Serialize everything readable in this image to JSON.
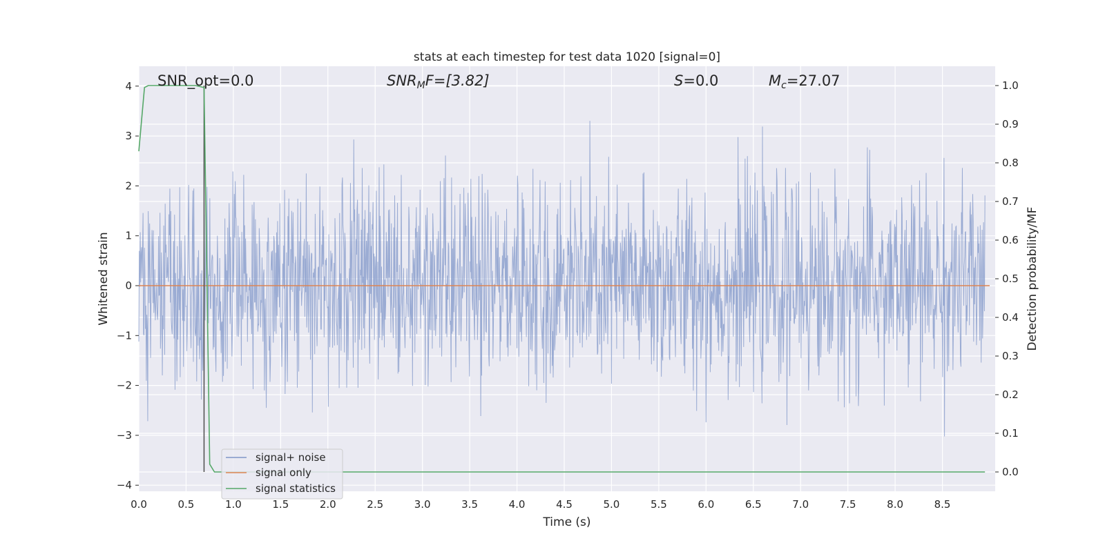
{
  "chart_data": {
    "type": "line",
    "title": "stats at each timestep for test data 1020 [signal=0]",
    "xlabel": "Time (s)",
    "ylabel": "Whitened strain",
    "y2label": "Detection probability/MF",
    "xlim": [
      0.0,
      9.0
    ],
    "ylim": [
      -4.2,
      4.4
    ],
    "y2lim": [
      -0.045,
      1.045
    ],
    "xticks": [
      "0.0",
      "0.5",
      "1.0",
      "1.5",
      "2.0",
      "2.5",
      "3.0",
      "3.5",
      "4.0",
      "4.5",
      "5.0",
      "5.5",
      "6.0",
      "6.5",
      "7.0",
      "7.5",
      "8.0",
      "8.5"
    ],
    "yticks": [
      "4",
      "3",
      "2",
      "1",
      "0",
      "−1",
      "−2",
      "−3",
      "−4"
    ],
    "y2ticks": [
      "1.0",
      "0.9",
      "0.8",
      "0.7",
      "0.6",
      "0.5",
      "0.4",
      "0.3",
      "0.2",
      "0.1",
      "0.0"
    ],
    "grid": true,
    "legend_placement": "lower-left",
    "annotations": {
      "snr_opt": "SNR_opt=0.0",
      "snr_mf_base": "SNR",
      "snr_mf_sub": "M",
      "snr_mf_rest": "F=[3.82]",
      "s_var": "S",
      "s_rest": "=0.0",
      "mc_var": "M",
      "mc_sub": "c",
      "mc_rest": "=27.07"
    },
    "series": [
      {
        "name": "signal+ noise",
        "color": "#7f96c8",
        "axis": "left",
        "description_values": {
          "n_samples": 1800,
          "approx_std": 1.0,
          "max": 4.0,
          "min": -3.8
        }
      },
      {
        "name": "signal only",
        "color": "#dd8452",
        "axis": "left",
        "x": [
          0.0,
          9.0
        ],
        "y": [
          0.0,
          0.0
        ]
      },
      {
        "name": "signal statistics",
        "color": "#55a868",
        "axis": "right",
        "x": [
          0.0,
          0.06,
          0.1,
          0.2,
          0.3,
          0.4,
          0.5,
          0.6,
          0.69,
          0.75,
          0.8,
          0.9,
          1.0,
          2.0,
          3.0,
          4.0,
          5.0,
          6.0,
          7.0,
          8.0,
          8.95
        ],
        "y": [
          0.83,
          0.995,
          1.0,
          1.0,
          1.0,
          1.0,
          1.0,
          1.0,
          0.995,
          0.02,
          0.0,
          0.0,
          0.0,
          0.0,
          0.0,
          0.0,
          0.0,
          0.0,
          0.0,
          0.0,
          0.0
        ]
      },
      {
        "name": "",
        "color": "#4c4c4c",
        "axis": "right",
        "x": [
          0.69,
          0.69
        ],
        "y": [
          0.0,
          1.0
        ]
      }
    ]
  },
  "colors": {
    "axes_bg": "#eaeaf2",
    "grid": "#ffffff",
    "strain": "#7f96c8",
    "signal_only": "#dd8452",
    "statistics": "#55a868",
    "marker_line": "#4c4c4c"
  }
}
